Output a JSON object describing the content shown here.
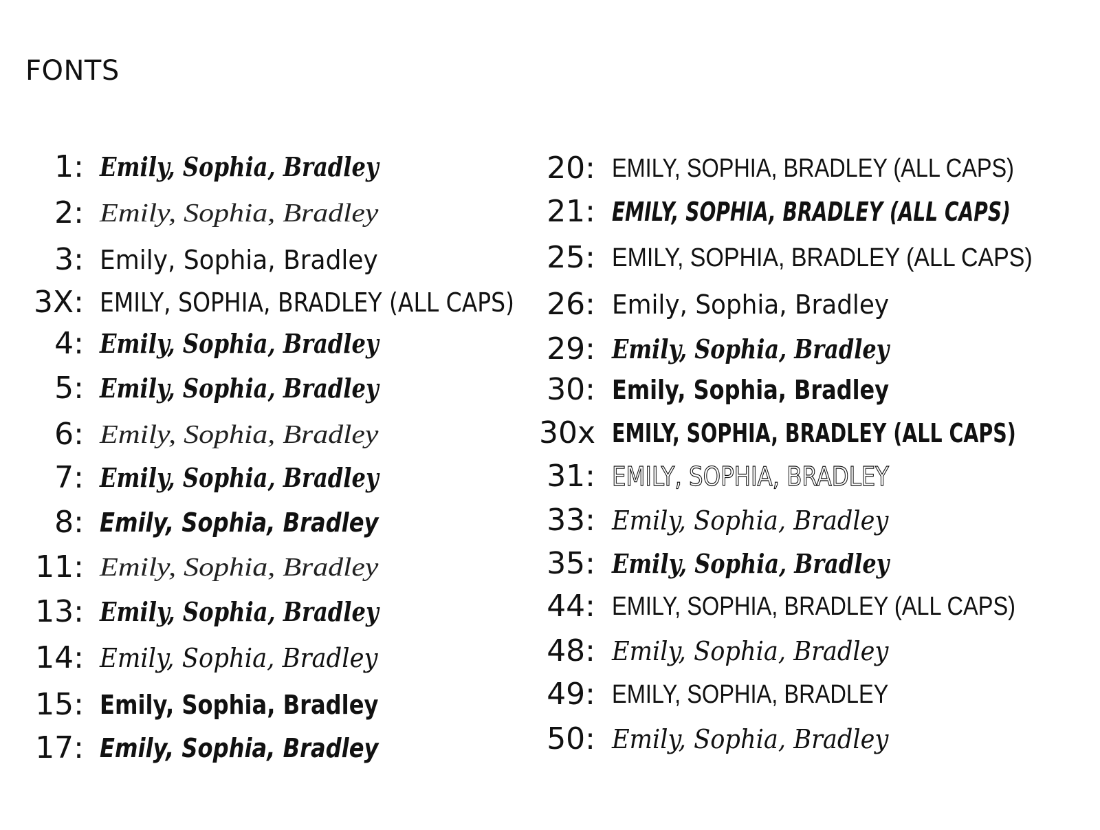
{
  "title": "FONTS",
  "left_column": [
    {
      "number": "1:",
      "text": "Emily, Sophia, Bradley",
      "style": "scriptb"
    },
    {
      "number": "2:",
      "text": "Emily, Sophia, Bradley",
      "style": "thin"
    },
    {
      "number": "3:",
      "text": "Emily, Sophia, Bradley",
      "style": "sans"
    },
    {
      "number": "3X:",
      "text": "EMILY, SOPHIA, BRADLEY (ALL CAPS)",
      "style": "sans"
    },
    {
      "number": "4:",
      "text": "Emily, Sophia, Bradley",
      "style": "scriptb"
    },
    {
      "number": "5:",
      "text": "Emily, Sophia, Bradley",
      "style": "scriptb"
    },
    {
      "number": "6:",
      "text": "Emily, Sophia, Bradley",
      "style": "thin"
    },
    {
      "number": "7:",
      "text": "Emily, Sophia, Bradley",
      "style": "scriptb"
    },
    {
      "number": "8:",
      "text": "Emily, Sophia, Bradley",
      "style": "boldi"
    },
    {
      "number": "11:",
      "text": "Emily, Sophia, Bradley",
      "style": "thin"
    },
    {
      "number": "13:",
      "text": "Emily, Sophia, Bradley",
      "style": "scriptb"
    },
    {
      "number": "14:",
      "text": "Emily, Sophia, Bradley",
      "style": "script"
    },
    {
      "number": "15:",
      "text": "Emily, Sophia, Bradley",
      "style": "bold"
    },
    {
      "number": "17:",
      "text": "Emily, Sophia, Bradley",
      "style": "boldi"
    }
  ],
  "right_column": [
    {
      "number": "20:",
      "text": "EMILY, SOPHIA, BRADLEY (ALL CAPS)",
      "style": "cond"
    },
    {
      "number": "21:",
      "text": "EMILY, SOPHIA, BRADLEY (ALL CAPS)",
      "style": "boldi"
    },
    {
      "number": "25:",
      "text": "EMILY, SOPHIA, BRADLEY (ALL CAPS)",
      "style": "cond"
    },
    {
      "number": "26:",
      "text": "Emily, Sophia, Bradley",
      "style": "sans"
    },
    {
      "number": "29:",
      "text": "Emily, Sophia, Bradley",
      "style": "scriptb"
    },
    {
      "number": "30:",
      "text": "Emily, Sophia, Bradley",
      "style": "bold"
    },
    {
      "number": "30x",
      "text": "EMILY, SOPHIA, BRADLEY (ALL CAPS)",
      "style": "bold"
    },
    {
      "number": "31:",
      "text": "EMILY, SOPHIA, BRADLEY",
      "style": "outline"
    },
    {
      "number": "33:",
      "text": "Emily, Sophia, Bradley",
      "style": "script"
    },
    {
      "number": "35:",
      "text": "Emily, Sophia, Bradley",
      "style": "scriptb"
    },
    {
      "number": "44:",
      "text": "EMILY, SOPHIA, BRADLEY (ALL CAPS)",
      "style": "cond"
    },
    {
      "number": "48:",
      "text": "Emily, Sophia, Bradley",
      "style": "script"
    },
    {
      "number": "49:",
      "text": "EMILY, SOPHIA, BRADLEY",
      "style": "cond"
    },
    {
      "number": "50:",
      "text": "Emily, Sophia, Bradley",
      "style": "script"
    }
  ]
}
